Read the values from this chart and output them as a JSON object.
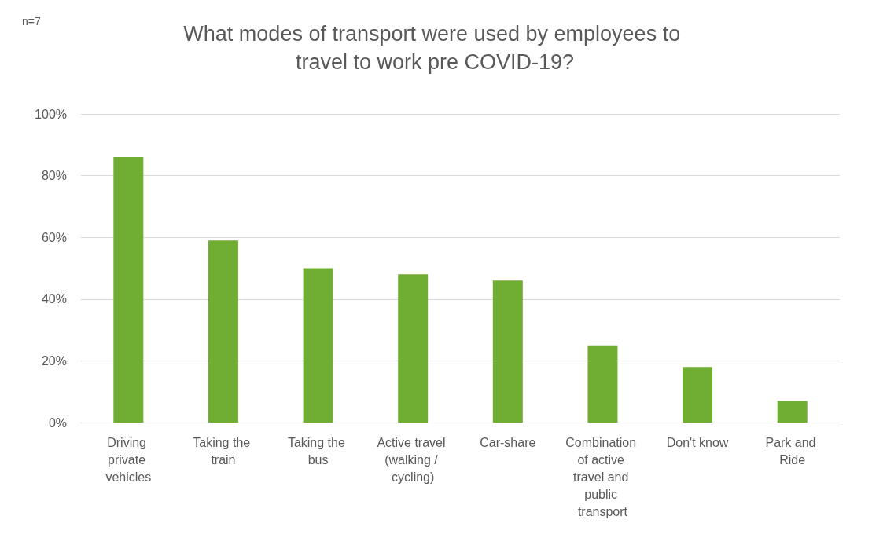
{
  "chart_data": {
    "type": "bar",
    "title": "What modes of transport were used by employees to travel to work pre COVID-19?",
    "annotations": [
      "n=7"
    ],
    "categories": [
      "Driving private vehicles",
      "Taking the train",
      "Taking the bus",
      "Active travel (walking / cycling)",
      "Car-share",
      "Combination of active travel and public transport",
      "Don't know",
      "Park and Ride"
    ],
    "values": [
      86,
      59,
      50,
      48,
      46,
      25,
      18,
      7
    ],
    "color": "#70ad33",
    "ylim": [
      0,
      100
    ],
    "yticks": [
      {
        "value": 0,
        "label": "0%"
      },
      {
        "value": 20,
        "label": "20%"
      },
      {
        "value": 40,
        "label": "40%"
      },
      {
        "value": 60,
        "label": "60%"
      },
      {
        "value": 80,
        "label": "80%"
      },
      {
        "value": 100,
        "label": "100%"
      }
    ],
    "grid": "y"
  }
}
